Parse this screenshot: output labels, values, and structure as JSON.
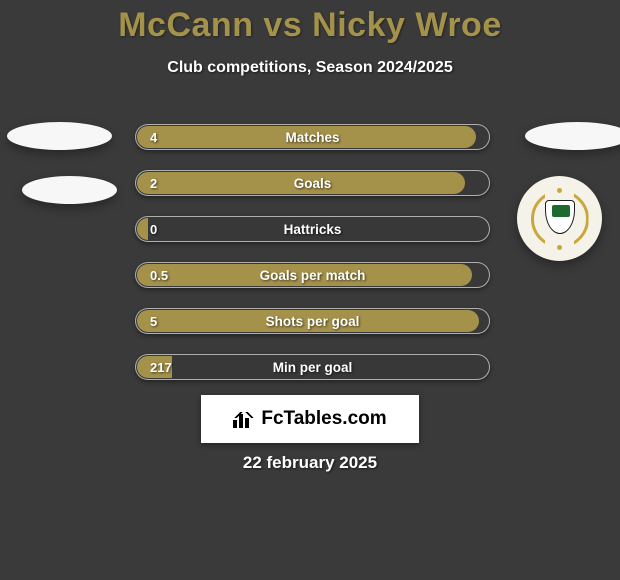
{
  "background_color": "#3a3a3a",
  "title": "McCann vs Nicky Wroe",
  "title_color": "#a4914a",
  "title_fontsize": 34,
  "subtitle": "Club competitions, Season 2024/2025",
  "subtitle_color": "#ffffff",
  "bars": {
    "track_width": 355,
    "track_height": 26,
    "track_border_color": "rgba(255,255,255,0.6)",
    "fill_color": "#a4914a",
    "label_color": "#ffffff",
    "value_color": "#ffffff",
    "label_fontsize": 13.5,
    "rows": [
      {
        "label": "Matches",
        "value_text": "4",
        "fill_pct": 96
      },
      {
        "label": "Goals",
        "value_text": "2",
        "fill_pct": 93
      },
      {
        "label": "Hattricks",
        "value_text": "0",
        "fill_pct": 3
      },
      {
        "label": "Goals per match",
        "value_text": "0.5",
        "fill_pct": 95
      },
      {
        "label": "Shots per goal",
        "value_text": "5",
        "fill_pct": 97
      },
      {
        "label": "Min per goal",
        "value_text": "217",
        "fill_pct": 10
      }
    ]
  },
  "side_markers": {
    "left_ellipse_1_color": "#f7f7f7",
    "left_ellipse_2_color": "#f7f7f7",
    "right_ellipse_color": "#f7f7f7",
    "right_badge_bg": "#f5f2e9",
    "right_badge_accent": "#c8a83a"
  },
  "brand": {
    "text": "FcTables.com",
    "bg": "#ffffff",
    "text_color": "#000000"
  },
  "date": "22 february 2025"
}
